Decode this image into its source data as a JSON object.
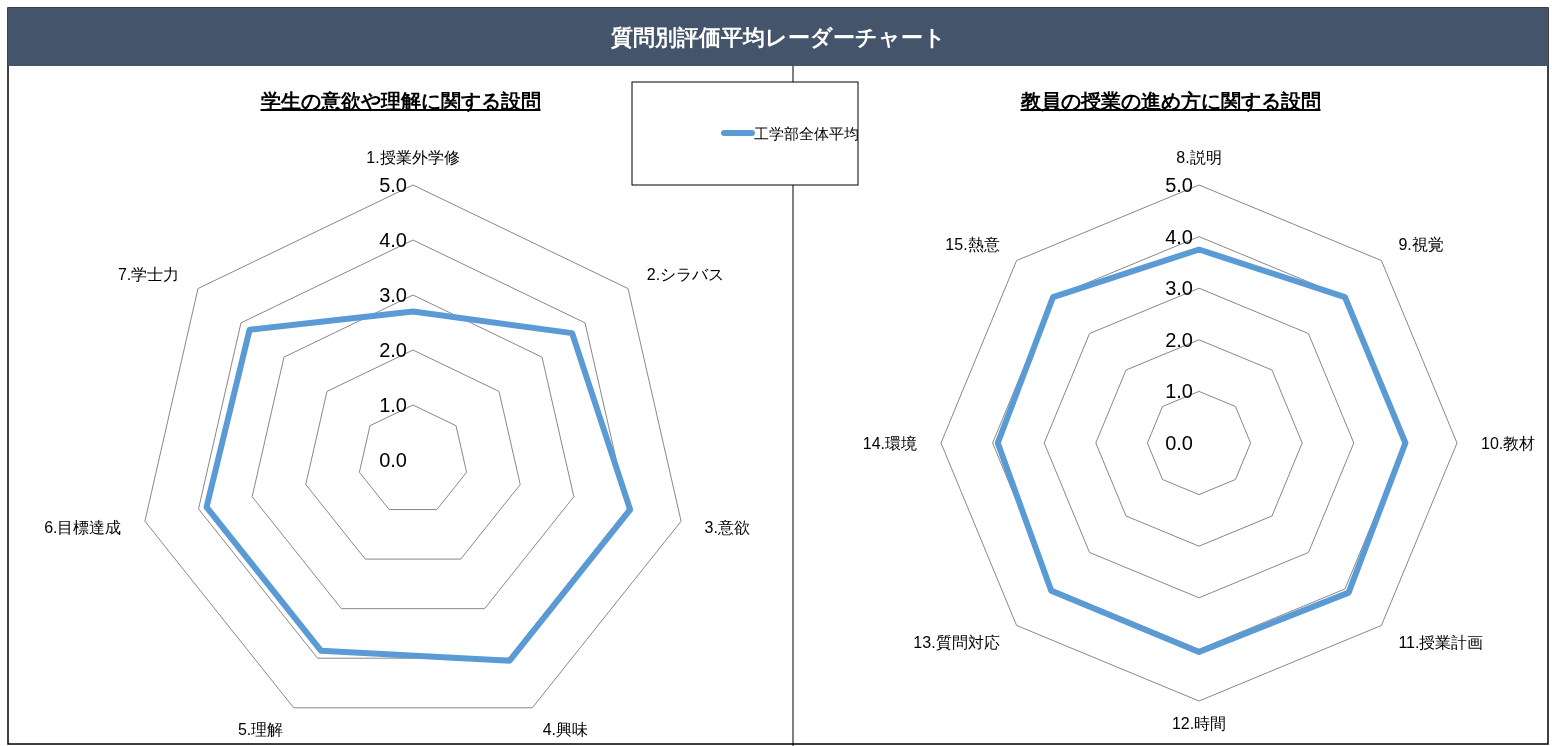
{
  "chart_data": [
    {
      "type": "radar",
      "title": "質問別評価平均レーダーチャート",
      "subtitle": "学生の意欲や理解に関する設問",
      "categories": [
        "1.授業外学修",
        "2.シラバス",
        "3.意欲",
        "4.興味",
        "5.理解",
        "6.目標達成",
        "7.学士力"
      ],
      "series": [
        {
          "name": "工学部全体平均",
          "color": "#5b9bd5",
          "values": [
            2.7,
            3.7,
            4.05,
            4.05,
            3.85,
            3.85,
            3.8
          ]
        }
      ],
      "ylim": [
        0,
        5
      ],
      "yticks": [
        {
          "value": 0,
          "label": "0.0"
        },
        {
          "value": 1,
          "label": "1.0"
        },
        {
          "value": 2,
          "label": "2.0"
        },
        {
          "value": 3,
          "label": "3.0"
        },
        {
          "value": 4,
          "label": "4.0"
        },
        {
          "value": 5,
          "label": "5.0"
        }
      ],
      "grid": true,
      "legend": "top right",
      "marker": "none"
    },
    {
      "type": "radar",
      "subtitle": "教員の授業の進め方に関する設問",
      "categories": [
        "8.説明",
        "9.視覚",
        "10.教材",
        "11.授業計画",
        "12.時間",
        "13.質問対応",
        "14.環境",
        "15.熱意"
      ],
      "series": [
        {
          "name": "工学部全体平均",
          "color": "#5b9bd5",
          "values": [
            3.75,
            4.0,
            4.0,
            4.1,
            4.05,
            4.05,
            3.9,
            4.0
          ]
        }
      ],
      "ylim": [
        0,
        5
      ],
      "yticks": [
        {
          "value": 0,
          "label": "0.0"
        },
        {
          "value": 1,
          "label": "1.0"
        },
        {
          "value": 2,
          "label": "2.0"
        },
        {
          "value": 3,
          "label": "3.0"
        },
        {
          "value": 4,
          "label": "4.0"
        },
        {
          "value": 5,
          "label": "5.0"
        }
      ],
      "grid": true,
      "marker": "none"
    }
  ]
}
